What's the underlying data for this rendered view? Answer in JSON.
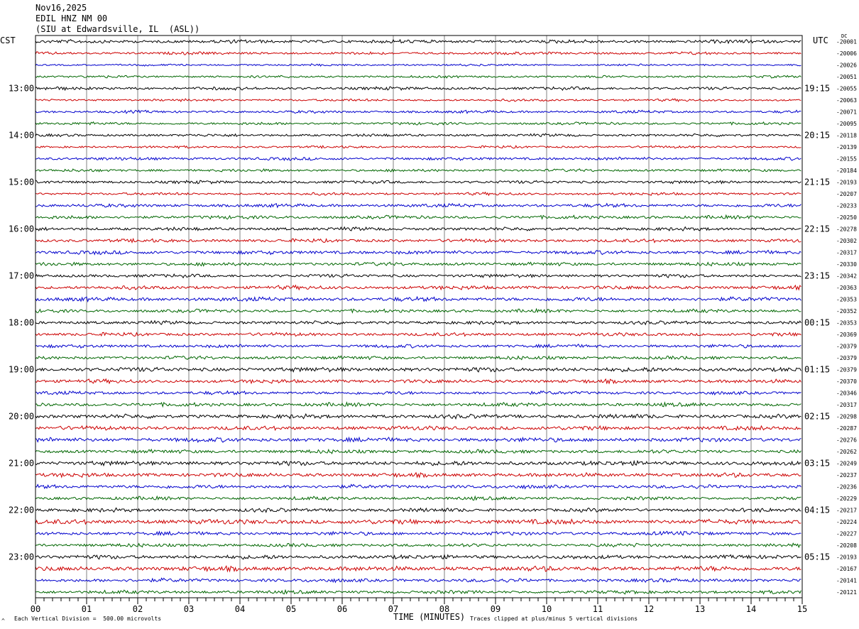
{
  "header": {
    "date": "Nov16,2025",
    "station": "EDIL HNZ NM 00",
    "location": "(SIU at Edwardsville, IL  (ASL))"
  },
  "axis_labels": {
    "left_timezone": "CST",
    "right_timezone": "UTC",
    "dc_column": "DC",
    "x_title": "TIME (MINUTES)"
  },
  "footer": {
    "vertical_division": "Each Vertical Division =  500.00 microvolts",
    "clip_note": "Traces clipped at plus/minus 5 vertical divisions",
    "corner_mark": "^"
  },
  "colors": {
    "trace_cycle": [
      "#000000",
      "#cc0000",
      "#0000cc",
      "#006600"
    ],
    "grid": "#808080",
    "frame": "#000000"
  },
  "chart_data": {
    "type": "line",
    "subtype": "helicorder",
    "x_range_minutes": [
      0,
      15
    ],
    "x_ticks": [
      "00",
      "01",
      "02",
      "03",
      "04",
      "05",
      "06",
      "07",
      "08",
      "09",
      "10",
      "11",
      "12",
      "13",
      "14",
      "15"
    ],
    "traces_per_hour": 4,
    "minutes_per_trace": 15,
    "trace_count": 48,
    "left_hour_labels": [
      "13:00",
      "14:00",
      "15:00",
      "16:00",
      "17:00",
      "18:00",
      "19:00",
      "20:00",
      "21:00",
      "22:00",
      "23:00"
    ],
    "right_hour_labels": [
      "19:15",
      "20:15",
      "21:15",
      "22:15",
      "23:15",
      "00:15",
      "01:15",
      "02:15",
      "03:15",
      "04:15",
      "05:15"
    ],
    "dc_offsets": [
      "-20001",
      "-20006",
      "-20026",
      "-20051",
      "-20055",
      "-20063",
      "-20071",
      "-20095",
      "-20118",
      "-20139",
      "-20155",
      "-20184",
      "-20193",
      "-20207",
      "-20233",
      "-20250",
      "-20278",
      "-20302",
      "-20317",
      "-20330",
      "-20342",
      "-20363",
      "-20353",
      "-20352",
      "-20353",
      "-20369",
      "-20379",
      "-20379",
      "-20379",
      "-20370",
      "-20346",
      "-20317",
      "-20298",
      "-20287",
      "-20276",
      "-20262",
      "-20249",
      "-20237",
      "-20236",
      "-20229",
      "-20217",
      "-20224",
      "-20227",
      "-20208",
      "-20193",
      "-20167",
      "-20141",
      "-20121"
    ],
    "amplitude_scale": [
      1.0,
      0.8,
      0.6,
      0.7,
      0.9,
      0.7,
      0.8,
      0.8,
      0.8,
      0.7,
      0.9,
      0.8,
      0.9,
      0.8,
      1.0,
      1.0,
      1.0,
      1.0,
      1.1,
      1.0,
      1.0,
      1.1,
      1.2,
      1.0,
      1.0,
      1.0,
      1.0,
      1.0,
      1.3,
      1.1,
      1.0,
      1.1,
      1.2,
      1.2,
      1.3,
      1.1,
      1.3,
      1.2,
      1.1,
      1.0,
      1.1,
      1.4,
      1.1,
      1.0,
      1.2,
      1.4,
      1.1,
      1.0
    ]
  }
}
